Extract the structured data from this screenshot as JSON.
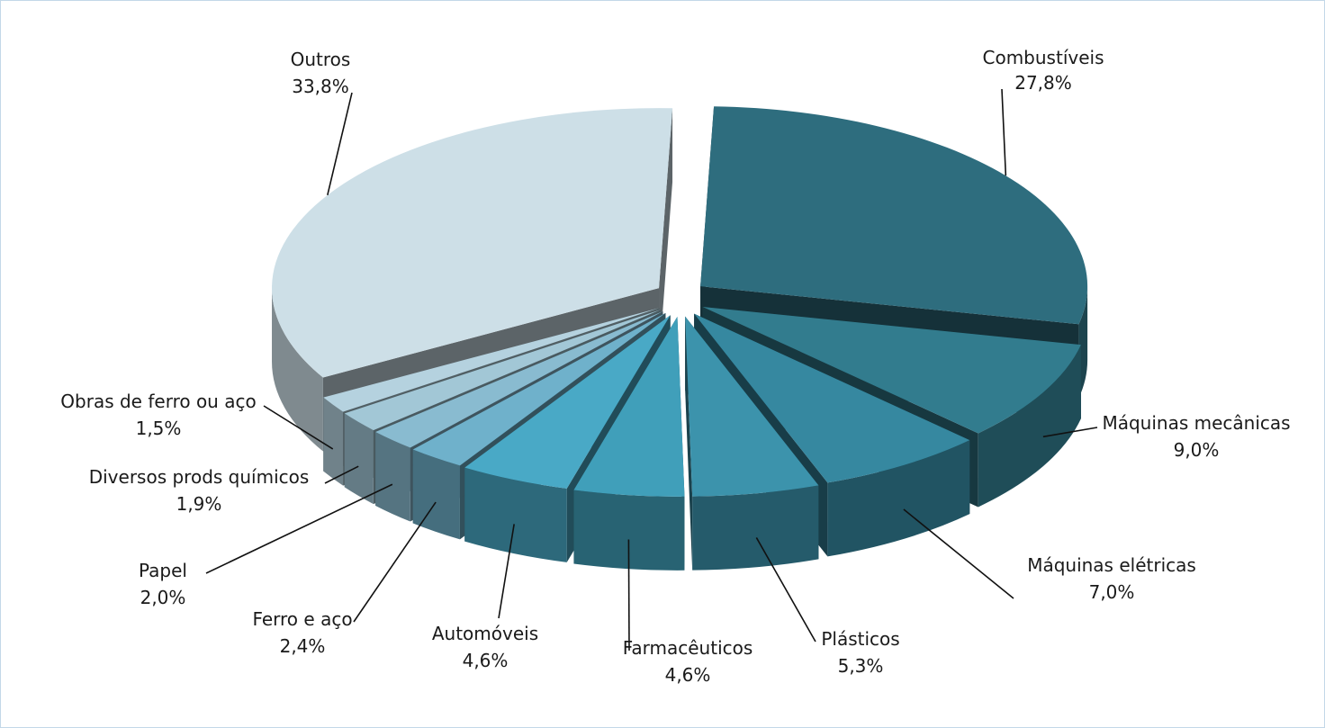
{
  "chart_data": {
    "type": "pie",
    "title": "",
    "style": "3d-exploded",
    "label_format": "name-and-percent",
    "slices": [
      {
        "name": "Combustíveis",
        "value": 27.8,
        "value_label": "27,8%",
        "color": "#2e6d7e"
      },
      {
        "name": "Máquinas mecânicas",
        "value": 9.0,
        "value_label": "9,0%",
        "color": "#327c8e"
      },
      {
        "name": "Máquinas elétricas",
        "value": 7.0,
        "value_label": "7,0%",
        "color": "#3688a0"
      },
      {
        "name": "Plásticos",
        "value": 5.3,
        "value_label": "5,3%",
        "color": "#3c93ac"
      },
      {
        "name": "Farmacêuticos",
        "value": 4.6,
        "value_label": "4,6%",
        "color": "#409fba"
      },
      {
        "name": "Automóveis",
        "value": 4.6,
        "value_label": "4,6%",
        "color": "#49a9c6"
      },
      {
        "name": "Ferro e aço",
        "value": 2.4,
        "value_label": "2,4%",
        "color": "#6fb1cb"
      },
      {
        "name": "Papel",
        "value": 2.0,
        "value_label": "2,0%",
        "color": "#89bbd0"
      },
      {
        "name": "Diversos prods químicos",
        "value": 1.9,
        "value_label": "1,9%",
        "color": "#a2c7d6"
      },
      {
        "name": "Obras de ferro ou aço",
        "value": 1.5,
        "value_label": "1,5%",
        "color": "#b5d2df"
      },
      {
        "name": "Outros",
        "value": 33.8,
        "value_label": "33,8%",
        "color": "#cddfe7"
      }
    ]
  }
}
